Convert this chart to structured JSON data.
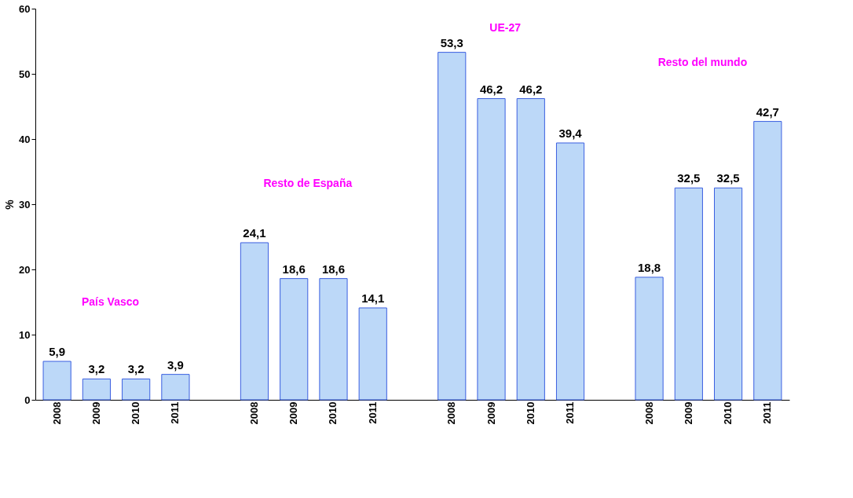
{
  "chart_data": {
    "type": "bar",
    "ylabel": "%",
    "categories": [
      "2008",
      "2009",
      "2010",
      "2011",
      null,
      "2008",
      "2009",
      "2010",
      "2011",
      null,
      "2008",
      "2009",
      "2010",
      "2011",
      null,
      "2008",
      "2009",
      "2010",
      "2011"
    ],
    "values": [
      5.9,
      3.2,
      3.2,
      3.9,
      null,
      24.1,
      18.6,
      18.6,
      14.1,
      null,
      53.3,
      46.2,
      46.2,
      39.4,
      null,
      18.8,
      32.5,
      32.5,
      42.7
    ],
    "value_labels": [
      "5,9",
      "3,2",
      "3,2",
      "3,9",
      null,
      "24,1",
      "18,6",
      "18,6",
      "14,1",
      null,
      "53,3",
      "46,2",
      "46,2",
      "39,4",
      null,
      "18,8",
      "32,5",
      "32,5",
      "42,7"
    ],
    "color": "#bcd8f8",
    "ylim": [
      0,
      60
    ],
    "yticks": [
      0,
      10,
      20,
      30,
      40,
      50,
      60
    ],
    "grid": false,
    "annotations": [
      "País Vasco",
      "Resto de España",
      "UE-27",
      "Resto del mundo"
    ]
  }
}
